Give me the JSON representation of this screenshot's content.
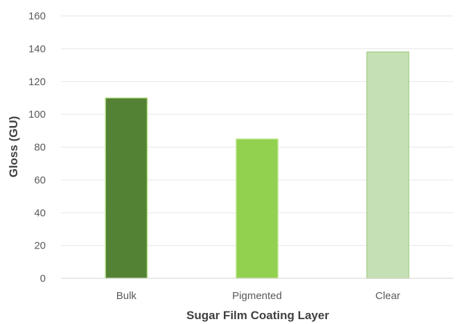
{
  "chart_data": {
    "type": "bar",
    "categories": [
      "Bulk",
      "Pigmented",
      "Clear"
    ],
    "values": [
      110,
      85,
      138
    ],
    "bar_colors": [
      "#548235",
      "#92d050",
      "#c5e0b4"
    ],
    "bar_borders": [
      "#b8e08a",
      "#c8eaa0",
      "#a9d08e"
    ],
    "xlabel": "Sugar Film Coating Layer",
    "ylabel": "Gloss (GU)",
    "ylim": [
      0,
      160
    ],
    "yticks": [
      "0",
      "20",
      "40",
      "60",
      "80",
      "100",
      "120",
      "140",
      "160"
    ],
    "grid": true,
    "legend": false
  }
}
